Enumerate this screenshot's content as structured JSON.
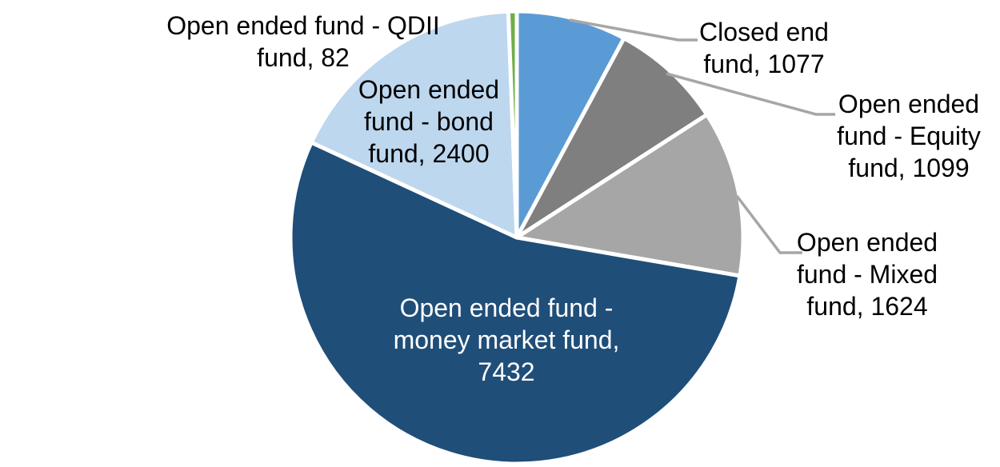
{
  "chart_data": {
    "type": "pie",
    "title": "",
    "total": 13714,
    "direction": "clockwise",
    "start_angle_deg": 0,
    "background_color": "#FFFFFF",
    "separator_color": "#FFFFFF",
    "leader_line_color": "#A6A6A6",
    "label_text_color": "#000000",
    "inside_label_text_color": "#FFFFFF",
    "slices": [
      {
        "id": "closed-end-fund",
        "label": "Closed end fund",
        "value": 1077,
        "color": "#5B9BD5",
        "label_position": "outside-right",
        "display_lines": [
          "Closed end",
          "fund, 1077"
        ]
      },
      {
        "id": "equity-fund",
        "label": "Open ended fund - Equity fund",
        "value": 1099,
        "color": "#7F7F7F",
        "label_position": "outside-right",
        "display_lines": [
          "Open ended",
          "fund - Equity",
          "fund, 1099"
        ]
      },
      {
        "id": "mixed-fund",
        "label": "Open ended fund - Mixed fund",
        "value": 1624,
        "color": "#A6A6A6",
        "label_position": "outside-right",
        "display_lines": [
          "Open ended",
          "fund - Mixed",
          "fund, 1624"
        ]
      },
      {
        "id": "money-market-fund",
        "label": "Open ended fund - money market fund",
        "value": 7432,
        "color": "#1F4E79",
        "label_position": "inside",
        "display_lines": [
          "Open ended fund -",
          "money market fund,",
          "7432"
        ]
      },
      {
        "id": "bond-fund",
        "label": "Open ended fund - bond fund",
        "value": 2400,
        "color": "#BDD7EE",
        "label_position": "outside-left",
        "display_lines": [
          "Open ended",
          "fund - bond",
          "fund, 2400"
        ]
      },
      {
        "id": "qdii-fund",
        "label": "Open ended fund - QDII fund",
        "value": 82,
        "color": "#70AD47",
        "label_position": "outside-left",
        "display_lines": [
          "Open ended fund - QDII",
          "fund, 82"
        ]
      }
    ]
  }
}
